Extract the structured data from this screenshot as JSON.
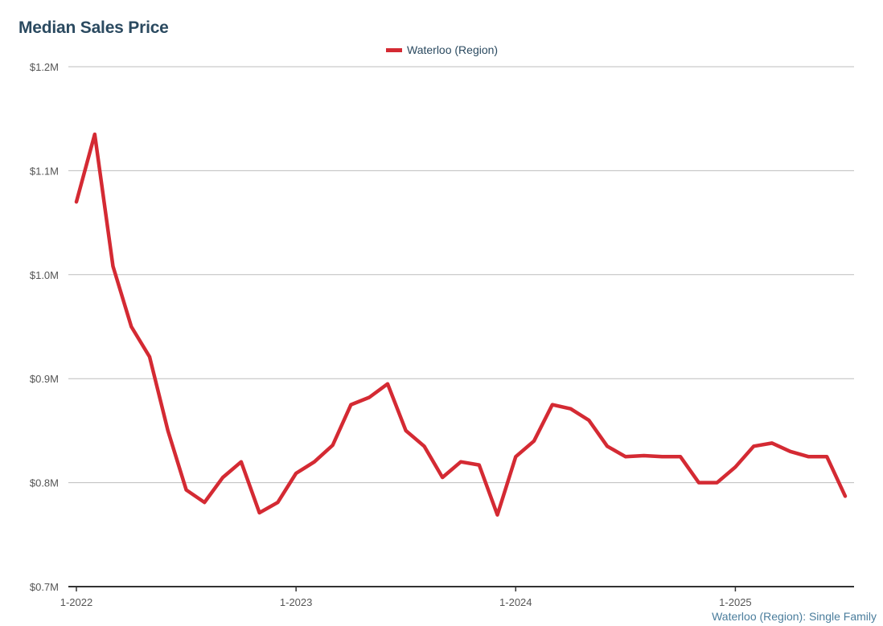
{
  "chart_data": {
    "type": "line",
    "title": "Median Sales Price",
    "xlabel": "",
    "ylabel": "",
    "grid": true,
    "legend_placement": "top-center",
    "ylim": [
      700000,
      1200000
    ],
    "y_ticks": [
      700000,
      800000,
      900000,
      1000000,
      1100000,
      1200000
    ],
    "y_tick_labels": [
      "$0.7M",
      "$0.8M",
      "$0.9M",
      "$1.0M",
      "$1.1M",
      "$1.2M"
    ],
    "xlim": [
      "2022-01",
      "2025-07"
    ],
    "x_ticks": [
      "2022-01",
      "2023-01",
      "2024-01",
      "2025-01"
    ],
    "x_tick_labels": [
      "1-2022",
      "1-2023",
      "1-2024",
      "1-2025"
    ],
    "x": [
      "2022-01",
      "2022-02",
      "2022-03",
      "2022-04",
      "2022-05",
      "2022-06",
      "2022-07",
      "2022-08",
      "2022-09",
      "2022-10",
      "2022-11",
      "2022-12",
      "2023-01",
      "2023-02",
      "2023-03",
      "2023-04",
      "2023-05",
      "2023-06",
      "2023-07",
      "2023-08",
      "2023-09",
      "2023-10",
      "2023-11",
      "2023-12",
      "2024-01",
      "2024-02",
      "2024-03",
      "2024-04",
      "2024-05",
      "2024-06",
      "2024-07",
      "2024-08",
      "2024-09",
      "2024-10",
      "2024-11",
      "2024-12",
      "2025-01",
      "2025-02",
      "2025-03",
      "2025-04",
      "2025-05",
      "2025-06",
      "2025-07"
    ],
    "series": [
      {
        "name": "Waterloo (Region)",
        "color": "#d42a33",
        "values": [
          1070000,
          1135000,
          1008000,
          950000,
          921000,
          850000,
          793000,
          781000,
          805000,
          820000,
          771000,
          781000,
          809000,
          820000,
          836000,
          875000,
          882000,
          895000,
          850000,
          835000,
          805000,
          820000,
          817000,
          769000,
          825000,
          840000,
          875000,
          871000,
          860000,
          835000,
          825000,
          826000,
          825000,
          825000,
          800000,
          800000,
          815000,
          835000,
          838000,
          830000,
          825000,
          825000,
          787000
        ]
      }
    ]
  },
  "source_note": "Waterloo (Region): Single Family"
}
